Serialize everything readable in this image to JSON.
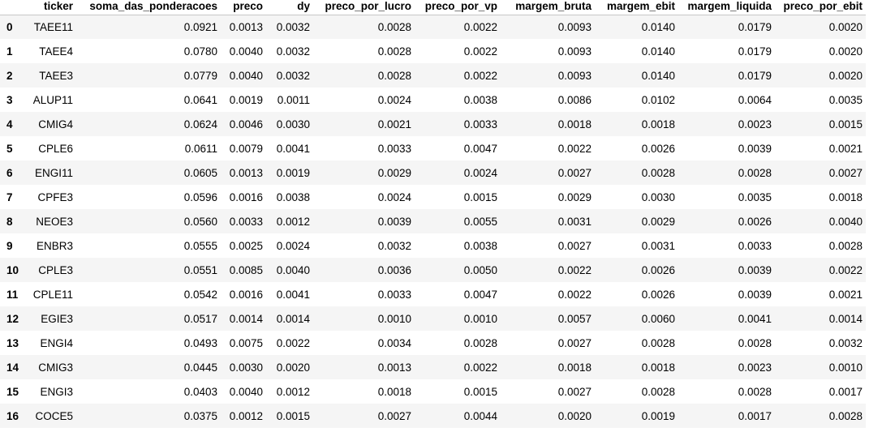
{
  "table": {
    "index_header": "",
    "columns": [
      "ticker",
      "soma_das_ponderacoes",
      "preco",
      "dy",
      "preco_por_lucro",
      "preco_por_vp",
      "margem_bruta",
      "margem_ebit",
      "margem_liquida",
      "preco_por_ebit"
    ],
    "rows": [
      {
        "index": "0",
        "cells": [
          "TAEE11",
          "0.0921",
          "0.0013",
          "0.0032",
          "0.0028",
          "0.0022",
          "0.0093",
          "0.0140",
          "0.0179",
          "0.0020"
        ]
      },
      {
        "index": "1",
        "cells": [
          "TAEE4",
          "0.0780",
          "0.0040",
          "0.0032",
          "0.0028",
          "0.0022",
          "0.0093",
          "0.0140",
          "0.0179",
          "0.0020"
        ]
      },
      {
        "index": "2",
        "cells": [
          "TAEE3",
          "0.0779",
          "0.0040",
          "0.0032",
          "0.0028",
          "0.0022",
          "0.0093",
          "0.0140",
          "0.0179",
          "0.0020"
        ]
      },
      {
        "index": "3",
        "cells": [
          "ALUP11",
          "0.0641",
          "0.0019",
          "0.0011",
          "0.0024",
          "0.0038",
          "0.0086",
          "0.0102",
          "0.0064",
          "0.0035"
        ]
      },
      {
        "index": "4",
        "cells": [
          "CMIG4",
          "0.0624",
          "0.0046",
          "0.0030",
          "0.0021",
          "0.0033",
          "0.0018",
          "0.0018",
          "0.0023",
          "0.0015"
        ]
      },
      {
        "index": "5",
        "cells": [
          "CPLE6",
          "0.0611",
          "0.0079",
          "0.0041",
          "0.0033",
          "0.0047",
          "0.0022",
          "0.0026",
          "0.0039",
          "0.0021"
        ]
      },
      {
        "index": "6",
        "cells": [
          "ENGI11",
          "0.0605",
          "0.0013",
          "0.0019",
          "0.0029",
          "0.0024",
          "0.0027",
          "0.0028",
          "0.0028",
          "0.0027"
        ]
      },
      {
        "index": "7",
        "cells": [
          "CPFE3",
          "0.0596",
          "0.0016",
          "0.0038",
          "0.0024",
          "0.0015",
          "0.0029",
          "0.0030",
          "0.0035",
          "0.0018"
        ]
      },
      {
        "index": "8",
        "cells": [
          "NEOE3",
          "0.0560",
          "0.0033",
          "0.0012",
          "0.0039",
          "0.0055",
          "0.0031",
          "0.0029",
          "0.0026",
          "0.0040"
        ]
      },
      {
        "index": "9",
        "cells": [
          "ENBR3",
          "0.0555",
          "0.0025",
          "0.0024",
          "0.0032",
          "0.0038",
          "0.0027",
          "0.0031",
          "0.0033",
          "0.0028"
        ]
      },
      {
        "index": "10",
        "cells": [
          "CPLE3",
          "0.0551",
          "0.0085",
          "0.0040",
          "0.0036",
          "0.0050",
          "0.0022",
          "0.0026",
          "0.0039",
          "0.0022"
        ]
      },
      {
        "index": "11",
        "cells": [
          "CPLE11",
          "0.0542",
          "0.0016",
          "0.0041",
          "0.0033",
          "0.0047",
          "0.0022",
          "0.0026",
          "0.0039",
          "0.0021"
        ]
      },
      {
        "index": "12",
        "cells": [
          "EGIE3",
          "0.0517",
          "0.0014",
          "0.0014",
          "0.0010",
          "0.0010",
          "0.0057",
          "0.0060",
          "0.0041",
          "0.0014"
        ]
      },
      {
        "index": "13",
        "cells": [
          "ENGI4",
          "0.0493",
          "0.0075",
          "0.0022",
          "0.0034",
          "0.0028",
          "0.0027",
          "0.0028",
          "0.0028",
          "0.0032"
        ]
      },
      {
        "index": "14",
        "cells": [
          "CMIG3",
          "0.0445",
          "0.0030",
          "0.0020",
          "0.0013",
          "0.0022",
          "0.0018",
          "0.0018",
          "0.0023",
          "0.0010"
        ]
      },
      {
        "index": "15",
        "cells": [
          "ENGI3",
          "0.0403",
          "0.0040",
          "0.0012",
          "0.0018",
          "0.0015",
          "0.0027",
          "0.0028",
          "0.0028",
          "0.0017"
        ]
      },
      {
        "index": "16",
        "cells": [
          "COCE5",
          "0.0375",
          "0.0012",
          "0.0015",
          "0.0027",
          "0.0044",
          "0.0020",
          "0.0019",
          "0.0017",
          "0.0028"
        ]
      }
    ]
  }
}
